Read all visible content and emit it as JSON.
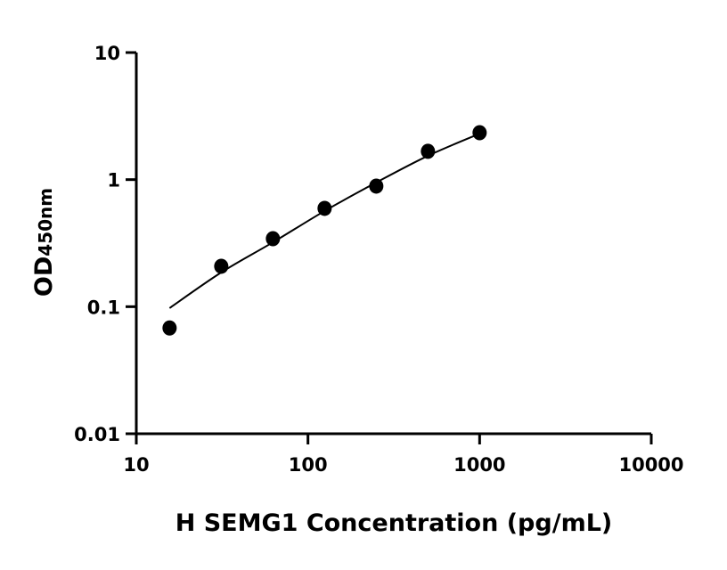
{
  "chart_data": {
    "type": "scatter",
    "title": "",
    "xlabel": "H SEMG1 Concentration (pg/mL)",
    "ylabel_main": "OD",
    "ylabel_sub": "450nm",
    "x_scale": "log",
    "y_scale": "log",
    "xlim": [
      10,
      10000
    ],
    "ylim": [
      0.01,
      10
    ],
    "x_ticks": [
      10,
      100,
      1000,
      10000
    ],
    "x_tick_labels": [
      "10",
      "100",
      "1000",
      "10000"
    ],
    "y_ticks": [
      0.01,
      0.1,
      1,
      10
    ],
    "y_tick_labels": [
      "0.01",
      "0.1",
      "1",
      "10"
    ],
    "grid": false,
    "legend": "none",
    "marker_color": "#000000",
    "points": {
      "x": [
        15.625,
        31.25,
        62.5,
        125,
        250,
        500,
        1000
      ],
      "y": [
        0.068,
        0.208,
        0.343,
        0.594,
        0.889,
        1.67,
        2.34
      ]
    },
    "fit_curve": {
      "x": [
        15.625,
        31.25,
        62.5,
        125,
        250,
        500,
        1000
      ],
      "y": [
        0.0975,
        0.186,
        0.321,
        0.566,
        0.949,
        1.54,
        2.3
      ]
    }
  }
}
